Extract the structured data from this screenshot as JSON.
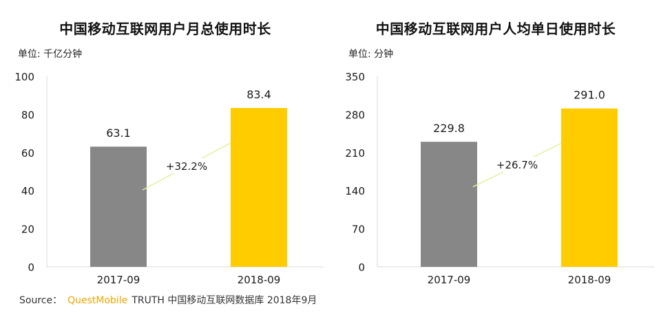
{
  "chart_data": [
    {
      "type": "bar",
      "title": "中国移动互联网用户月总使用时长",
      "unit": "单位: 千亿分钟",
      "categories": [
        "2017-09",
        "2018-09"
      ],
      "values": [
        63.1,
        83.4
      ],
      "value_labels": [
        "63.1",
        "83.4"
      ],
      "ylim": [
        0,
        100
      ],
      "yticks": [
        0,
        20,
        40,
        60,
        80,
        100
      ],
      "growth_label": "+32.2%",
      "bar_colors": [
        "#878787",
        "#ffcc00"
      ],
      "grid": false,
      "legend": "none"
    },
    {
      "type": "bar",
      "title": "中国移动互联网用户人均单日使用时长",
      "unit": "单位: 分钟",
      "categories": [
        "2017-09",
        "2018-09"
      ],
      "values": [
        229.8,
        291.0
      ],
      "value_labels": [
        "229.8",
        "291.0"
      ],
      "ylim": [
        0,
        350
      ],
      "yticks": [
        0,
        70,
        140,
        210,
        280,
        350
      ],
      "growth_label": "+26.7%",
      "bar_colors": [
        "#878787",
        "#ffcc00"
      ],
      "grid": false,
      "legend": "none"
    }
  ],
  "source": {
    "prefix": "Source：",
    "brand": "QuestMobile",
    "text": "TRUTH 中国移动互联网数据库 2018年9月"
  },
  "colors": {
    "axis": "#d9d9d9",
    "trend_line": "#e6ee9c",
    "brand": "#f0a500"
  }
}
